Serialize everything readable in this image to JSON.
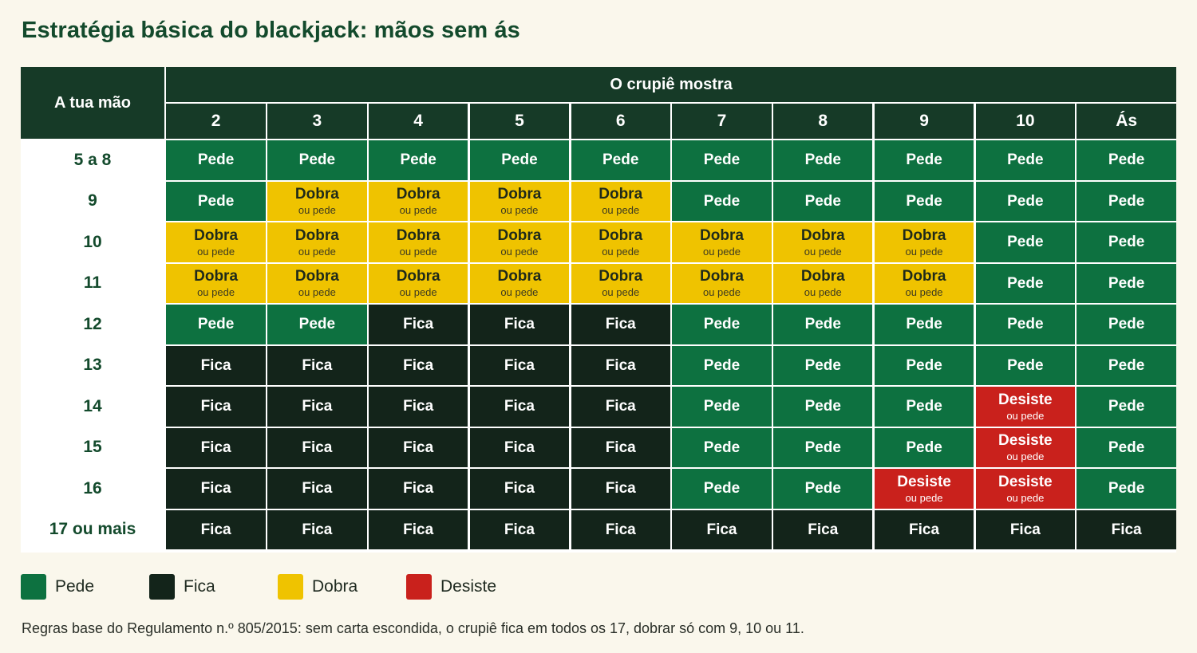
{
  "title": "Estratégia básica do blackjack: mãos sem ás",
  "table": {
    "corner_label": "A tua mão",
    "dealer_label": "O crupiê mostra",
    "dealer_cards": [
      "2",
      "3",
      "4",
      "5",
      "6",
      "7",
      "8",
      "9",
      "10",
      "Ás"
    ],
    "rows": [
      {
        "hand": "5 a 8",
        "actions": [
          "pede",
          "pede",
          "pede",
          "pede",
          "pede",
          "pede",
          "pede",
          "pede",
          "pede",
          "pede"
        ]
      },
      {
        "hand": "9",
        "actions": [
          "pede",
          "dobra",
          "dobra",
          "dobra",
          "dobra",
          "pede",
          "pede",
          "pede",
          "pede",
          "pede"
        ]
      },
      {
        "hand": "10",
        "actions": [
          "dobra",
          "dobra",
          "dobra",
          "dobra",
          "dobra",
          "dobra",
          "dobra",
          "dobra",
          "pede",
          "pede"
        ]
      },
      {
        "hand": "11",
        "actions": [
          "dobra",
          "dobra",
          "dobra",
          "dobra",
          "dobra",
          "dobra",
          "dobra",
          "dobra",
          "pede",
          "pede"
        ]
      },
      {
        "hand": "12",
        "actions": [
          "pede",
          "pede",
          "fica",
          "fica",
          "fica",
          "pede",
          "pede",
          "pede",
          "pede",
          "pede"
        ]
      },
      {
        "hand": "13",
        "actions": [
          "fica",
          "fica",
          "fica",
          "fica",
          "fica",
          "pede",
          "pede",
          "pede",
          "pede",
          "pede"
        ]
      },
      {
        "hand": "14",
        "actions": [
          "fica",
          "fica",
          "fica",
          "fica",
          "fica",
          "pede",
          "pede",
          "pede",
          "desiste",
          "pede"
        ]
      },
      {
        "hand": "15",
        "actions": [
          "fica",
          "fica",
          "fica",
          "fica",
          "fica",
          "pede",
          "pede",
          "pede",
          "desiste",
          "pede"
        ]
      },
      {
        "hand": "16",
        "actions": [
          "fica",
          "fica",
          "fica",
          "fica",
          "fica",
          "pede",
          "pede",
          "desiste",
          "desiste",
          "pede"
        ]
      },
      {
        "hand": "17 ou mais",
        "actions": [
          "fica",
          "fica",
          "fica",
          "fica",
          "fica",
          "fica",
          "fica",
          "fica",
          "fica",
          "fica"
        ]
      }
    ]
  },
  "actions": {
    "pede": {
      "label": "Pede",
      "sub": "",
      "color": "#0d7140"
    },
    "fica": {
      "label": "Fica",
      "sub": "",
      "color": "#13241a"
    },
    "dobra": {
      "label": "Dobra",
      "sub": "ou pede",
      "color": "#efc300"
    },
    "desiste": {
      "label": "Desiste",
      "sub": "ou pede",
      "color": "#c9211c"
    }
  },
  "legend": [
    {
      "label": "Pede",
      "color": "#0d7140"
    },
    {
      "label": "Fica",
      "color": "#13241a"
    },
    {
      "label": "Dobra",
      "color": "#efc300"
    },
    {
      "label": "Desiste",
      "color": "#c9211c"
    }
  ],
  "footnote": "Regras base do Regulamento n.º 805/2015: sem carta escondida, o crupiê fica em todos os 17, dobrar só com 9, 10 ou 11."
}
